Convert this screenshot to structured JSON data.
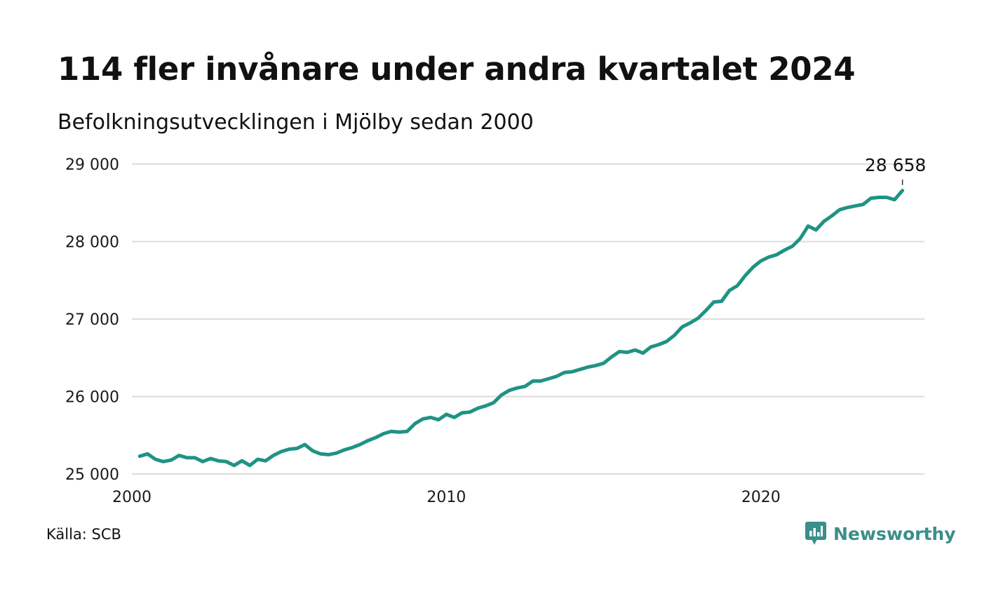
{
  "header": {
    "title": "114 fler invånare under andra kvartalet 2024",
    "subtitle": "Befolkningsutvecklingen i Mjölby sedan 2000"
  },
  "footer": {
    "source": "Källa: SCB",
    "brand": "Newsworthy"
  },
  "colors": {
    "line": "#1f9384",
    "grid": "#dddddd",
    "brand": "#3a8f89"
  },
  "chart_data": {
    "type": "line",
    "title": "114 fler invånare under andra kvartalet 2024",
    "subtitle": "Befolkningsutvecklingen i Mjölby sedan 2000",
    "xlabel": "",
    "ylabel": "",
    "xlim": [
      2000,
      2025.2
    ],
    "ylim": [
      25000,
      29000
    ],
    "x_ticks": [
      2000,
      2010,
      2020
    ],
    "x_tick_labels": [
      "2000",
      "2010",
      "2020"
    ],
    "y_ticks": [
      25000,
      26000,
      27000,
      28000,
      29000
    ],
    "y_tick_labels": [
      "25 000",
      "26 000",
      "27 000",
      "28 000",
      "29 000"
    ],
    "grid": true,
    "legend": "none",
    "last_value_label": "28 658",
    "series": [
      {
        "x": [
          2000.25,
          2000.5,
          2000.75,
          2001.0,
          2001.25,
          2001.5,
          2001.75,
          2002.0,
          2002.25,
          2002.5,
          2002.75,
          2003.0,
          2003.25,
          2003.5,
          2003.75,
          2004.0,
          2004.25,
          2004.5,
          2004.75,
          2005.0,
          2005.25,
          2005.5,
          2005.75,
          2006.0,
          2006.25,
          2006.5,
          2006.75,
          2007.0,
          2007.25,
          2007.5,
          2007.75,
          2008.0,
          2008.25,
          2008.5,
          2008.75,
          2009.0,
          2009.25,
          2009.5,
          2009.75,
          2010.0,
          2010.25,
          2010.5,
          2010.75,
          2011.0,
          2011.25,
          2011.5,
          2011.75,
          2012.0,
          2012.25,
          2012.5,
          2012.75,
          2013.0,
          2013.25,
          2013.5,
          2013.75,
          2014.0,
          2014.25,
          2014.5,
          2014.75,
          2015.0,
          2015.25,
          2015.5,
          2015.75,
          2016.0,
          2016.25,
          2016.5,
          2016.75,
          2017.0,
          2017.25,
          2017.5,
          2017.75,
          2018.0,
          2018.25,
          2018.5,
          2018.75,
          2019.0,
          2019.25,
          2019.5,
          2019.75,
          2020.0,
          2020.25,
          2020.5,
          2020.75,
          2021.0,
          2021.25,
          2021.5,
          2021.75,
          2022.0,
          2022.25,
          2022.5,
          2022.75,
          2023.0,
          2023.25,
          2023.5,
          2023.75,
          2024.0,
          2024.25,
          2024.5
        ],
        "values": [
          25230,
          25260,
          25190,
          25160,
          25180,
          25240,
          25210,
          25210,
          25160,
          25200,
          25170,
          25160,
          25110,
          25170,
          25110,
          25190,
          25170,
          25240,
          25290,
          25320,
          25330,
          25380,
          25300,
          25260,
          25250,
          25270,
          25310,
          25340,
          25380,
          25430,
          25470,
          25520,
          25550,
          25540,
          25550,
          25650,
          25710,
          25730,
          25700,
          25770,
          25730,
          25790,
          25800,
          25850,
          25880,
          25920,
          26020,
          26080,
          26110,
          26130,
          26200,
          26200,
          26230,
          26260,
          26310,
          26320,
          26350,
          26380,
          26400,
          26430,
          26510,
          26580,
          26570,
          26600,
          26560,
          26640,
          26670,
          26710,
          26790,
          26900,
          26950,
          27010,
          27110,
          27220,
          27230,
          27370,
          27430,
          27560,
          27670,
          27750,
          27800,
          27830,
          27890,
          27940,
          28040,
          28200,
          28150,
          28260,
          28330,
          28410,
          28440,
          28460,
          28480,
          28560,
          28570,
          28570,
          28540,
          28658
        ]
      }
    ]
  }
}
